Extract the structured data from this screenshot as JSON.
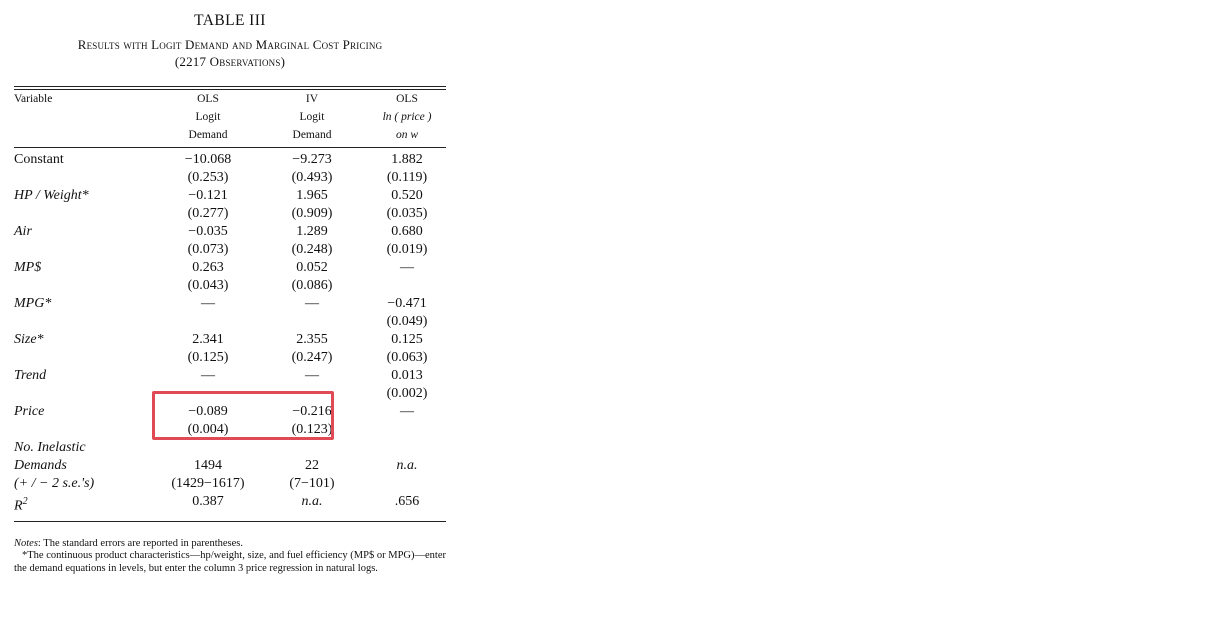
{
  "table": {
    "title": "TABLE III",
    "subtitle_line1": "Results with Logit Demand and Marginal Cost Pricing",
    "subtitle_line2": "(2217 Observations)",
    "headers": {
      "variable": "Variable",
      "col1": [
        "OLS",
        "Logit",
        "Demand"
      ],
      "col2": [
        "IV",
        "Logit",
        "Demand"
      ],
      "col3": [
        "OLS",
        "ln ( price )",
        "on w"
      ]
    },
    "rows": [
      {
        "label": "Constant",
        "italic": false,
        "c1": [
          "−10.068",
          "(0.253)"
        ],
        "c2": [
          "−9.273",
          "(0.493)"
        ],
        "c3": [
          "1.882",
          "(0.119)"
        ]
      },
      {
        "label": "HP / Weight*",
        "italic": true,
        "c1": [
          "−0.121",
          "(0.277)"
        ],
        "c2": [
          "1.965",
          "(0.909)"
        ],
        "c3": [
          "0.520",
          "(0.035)"
        ]
      },
      {
        "label": "Air",
        "italic": true,
        "c1": [
          "−0.035",
          "(0.073)"
        ],
        "c2": [
          "1.289",
          "(0.248)"
        ],
        "c3": [
          "0.680",
          "(0.019)"
        ]
      },
      {
        "label": "MP$",
        "italic": true,
        "c1": [
          "0.263",
          "(0.043)"
        ],
        "c2": [
          "0.052",
          "(0.086)"
        ],
        "c3": [
          "—",
          ""
        ]
      },
      {
        "label": "MPG*",
        "italic": true,
        "c1": [
          "—",
          ""
        ],
        "c2": [
          "—",
          ""
        ],
        "c3": [
          "−0.471",
          "(0.049)"
        ]
      },
      {
        "label": "Size*",
        "italic": true,
        "c1": [
          "2.341",
          "(0.125)"
        ],
        "c2": [
          "2.355",
          "(0.247)"
        ],
        "c3": [
          "0.125",
          "(0.063)"
        ]
      },
      {
        "label": "Trend",
        "italic": true,
        "c1": [
          "—",
          ""
        ],
        "c2": [
          "—",
          ""
        ],
        "c3": [
          "0.013",
          "(0.002)"
        ]
      },
      {
        "label": "Price",
        "italic": true,
        "c1": [
          "−0.089",
          "(0.004)"
        ],
        "c2": [
          "−0.216",
          "(0.123)"
        ],
        "c3": [
          "—",
          ""
        ]
      }
    ],
    "inelastic": {
      "label_line1": "No. Inelastic",
      "label_line2": "Demands",
      "label_line3": "(+ / − 2 s.e.'s)",
      "c1": [
        "1494",
        "(1429−1617)"
      ],
      "c2": [
        "22",
        "(7−101)"
      ],
      "c3": "n.a."
    },
    "r2": {
      "label": "R",
      "sup": "2",
      "c1": "0.387",
      "c2": "n.a.",
      "c3": ".656"
    },
    "notes": {
      "label": "Notes",
      "line1": ": The standard errors are reported in parentheses.",
      "star": "*The continuous product characteristics—hp/weight, size, and fuel efficiency (MP$ or MPG)—enter the demand equations in levels, but enter the column 3 price regression in natural logs."
    },
    "highlight_color": "#e04a55"
  }
}
